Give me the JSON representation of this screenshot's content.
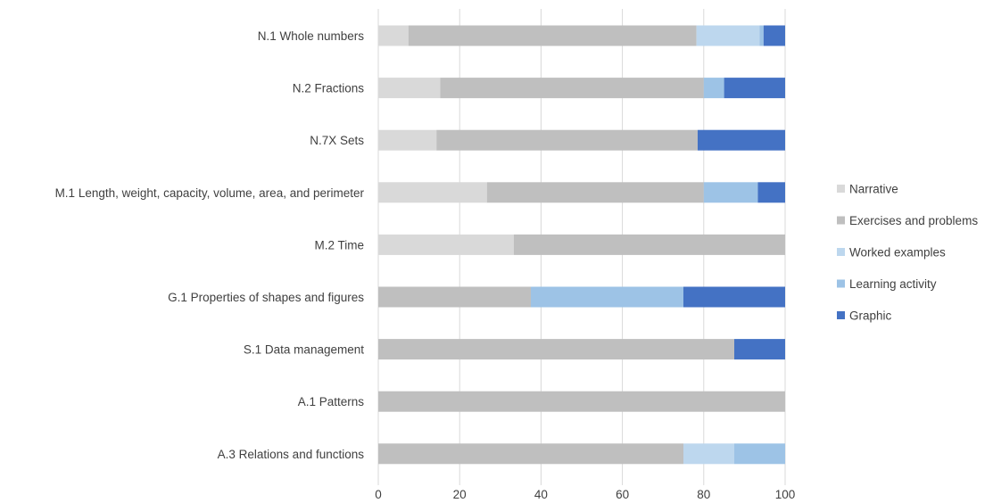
{
  "chart_data": {
    "type": "bar",
    "orientation": "horizontal",
    "stacked": true,
    "title": "",
    "xlabel": "",
    "ylabel": "",
    "xlim": [
      0,
      100
    ],
    "xticks": [
      0,
      20,
      40,
      60,
      80,
      100
    ],
    "grid": true,
    "legend_position": "right",
    "categories": [
      "N.1 Whole numbers",
      "N.2 Fractions",
      "N.7X Sets",
      "M.1 Length, weight, capacity, volume, area, and perimeter",
      "M.2 Time",
      "G.1 Properties of shapes and figures",
      "S.1 Data management",
      "A.1 Patterns",
      "A.3 Relations and functions"
    ],
    "series": [
      {
        "name": "Narrative",
        "color": "#d9d9d9",
        "values": [
          7.4,
          15.2,
          14.3,
          26.7,
          33.3,
          0,
          0,
          0,
          0
        ]
      },
      {
        "name": "Exercises and problems",
        "color": "#bfbfbf",
        "values": [
          70.8,
          64.8,
          64.2,
          53.3,
          66.7,
          37.5,
          87.5,
          100,
          75
        ]
      },
      {
        "name": "Worked examples",
        "color": "#bdd7ee",
        "values": [
          15.5,
          0,
          0,
          0,
          0,
          0,
          0,
          0,
          12.5
        ]
      },
      {
        "name": "Learning activity",
        "color": "#9dc3e6",
        "values": [
          1.0,
          5.0,
          0,
          13.3,
          0,
          37.5,
          0,
          0,
          12.5
        ]
      },
      {
        "name": "Graphic",
        "color": "#4472c4",
        "values": [
          5.3,
          15.0,
          21.5,
          6.7,
          0,
          25.0,
          12.5,
          0,
          0
        ]
      }
    ]
  }
}
